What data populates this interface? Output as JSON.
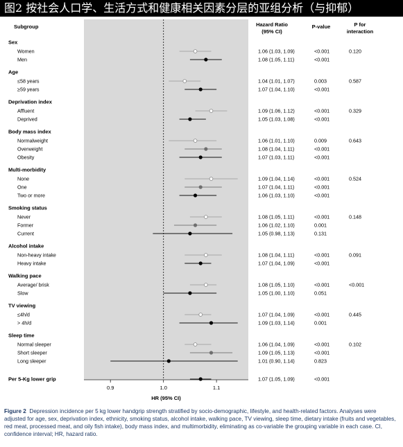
{
  "banner_title": "图2 按社会人口学、生活方式和健康相关因素分层的亚组分析（与抑郁）",
  "chart_data": {
    "type": "forest",
    "xlabel": "HR (95% CI)",
    "xlim": [
      0.85,
      1.16
    ],
    "xticks": [
      0.9,
      1.0,
      1.1
    ],
    "reference_line": 1.0,
    "columns": {
      "subgroup": "Subgroup",
      "hr_line1": "Hazard Ratio",
      "hr_line2": "(95% CI)",
      "pvalue": "P-value",
      "pint_line1": "P for",
      "pint_line2": "interaction"
    },
    "groups": [
      {
        "name": "Sex",
        "p_interaction": "0.120",
        "rows": [
          {
            "label": "Women",
            "hr": 1.06,
            "lo": 1.03,
            "hi": 1.09,
            "hr_text": "1.06 (1.03, 1.09)",
            "p": "<0.001",
            "marker": "open"
          },
          {
            "label": "Men",
            "hr": 1.08,
            "lo": 1.05,
            "hi": 1.11,
            "hr_text": "1.08 (1.05, 1.11)",
            "p": "<0.001",
            "marker": "filled"
          }
        ]
      },
      {
        "name": "Age",
        "p_interaction": "0.587",
        "rows": [
          {
            "label": "≤58 years",
            "hr": 1.04,
            "lo": 1.01,
            "hi": 1.07,
            "hr_text": "1.04 (1.01, 1.07)",
            "p": "0.003",
            "marker": "open"
          },
          {
            "label": "≥59 years",
            "hr": 1.07,
            "lo": 1.04,
            "hi": 1.1,
            "hr_text": "1.07 (1.04, 1.10)",
            "p": "<0.001",
            "marker": "filled"
          }
        ]
      },
      {
        "name": "Deprivation index",
        "p_interaction": "0.329",
        "rows": [
          {
            "label": "Affluent",
            "hr": 1.09,
            "lo": 1.06,
            "hi": 1.12,
            "hr_text": "1.09 (1.06, 1.12)",
            "p": "<0.001",
            "marker": "open"
          },
          {
            "label": "Deprived",
            "hr": 1.05,
            "lo": 1.03,
            "hi": 1.08,
            "hr_text": "1.05 (1.03, 1.08)",
            "p": "<0.001",
            "marker": "filled"
          }
        ]
      },
      {
        "name": "Body mass index",
        "p_interaction": "0.643",
        "rows": [
          {
            "label": "Normalweight",
            "hr": 1.06,
            "lo": 1.01,
            "hi": 1.1,
            "hr_text": "1.06 (1.01, 1.10)",
            "p": "0.009",
            "marker": "open"
          },
          {
            "label": "Overweight",
            "hr": 1.08,
            "lo": 1.04,
            "hi": 1.11,
            "hr_text": "1.08 (1.04, 1.11)",
            "p": "<0.001",
            "marker": "grey"
          },
          {
            "label": "Obesity",
            "hr": 1.07,
            "lo": 1.03,
            "hi": 1.11,
            "hr_text": "1.07 (1.03, 1.11)",
            "p": "<0.001",
            "marker": "filled"
          }
        ]
      },
      {
        "name": "Multi-morbidity",
        "p_interaction": "0.524",
        "rows": [
          {
            "label": "None",
            "hr": 1.09,
            "lo": 1.04,
            "hi": 1.14,
            "hr_text": "1.09 (1.04, 1.14)",
            "p": "<0.001",
            "marker": "open"
          },
          {
            "label": "One",
            "hr": 1.07,
            "lo": 1.04,
            "hi": 1.11,
            "hr_text": "1.07 (1.04, 1.11)",
            "p": "<0.001",
            "marker": "grey"
          },
          {
            "label": "Two or more",
            "hr": 1.06,
            "lo": 1.03,
            "hi": 1.1,
            "hr_text": "1.06 (1.03, 1.10)",
            "p": "<0.001",
            "marker": "filled"
          }
        ]
      },
      {
        "name": "Smoking status",
        "p_interaction": "0.148",
        "rows": [
          {
            "label": "Never",
            "hr": 1.08,
            "lo": 1.05,
            "hi": 1.11,
            "hr_text": "1.08 (1.05, 1.11)",
            "p": "<0.001",
            "marker": "open"
          },
          {
            "label": "Former",
            "hr": 1.06,
            "lo": 1.02,
            "hi": 1.1,
            "hr_text": "1.06 (1.02, 1.10)",
            "p": "0.001",
            "marker": "grey"
          },
          {
            "label": "Current",
            "hr": 1.05,
            "lo": 0.98,
            "hi": 1.13,
            "hr_text": "1.05 (0.98, 1.13)",
            "p": "0.131",
            "marker": "filled"
          }
        ]
      },
      {
        "name": "Alcohol intake",
        "p_interaction": "0.091",
        "rows": [
          {
            "label": "Non-heavy intake",
            "hr": 1.08,
            "lo": 1.04,
            "hi": 1.11,
            "hr_text": "1.08 (1.04, 1.11)",
            "p": "<0.001",
            "marker": "open"
          },
          {
            "label": "Heavy intake",
            "hr": 1.07,
            "lo": 1.04,
            "hi": 1.09,
            "hr_text": "1.07 (1.04, 1.09)",
            "p": "<0.001",
            "marker": "filled"
          }
        ]
      },
      {
        "name": "Walking pace",
        "p_interaction": "<0.001",
        "rows": [
          {
            "label": "Average/ brisk",
            "hr": 1.08,
            "lo": 1.05,
            "hi": 1.1,
            "hr_text": "1.08 (1.05, 1.10)",
            "p": "<0.001",
            "marker": "open"
          },
          {
            "label": "Slow",
            "hr": 1.05,
            "lo": 1.0,
            "hi": 1.1,
            "hr_text": "1.05 (1.00, 1.10)",
            "p": "0.051",
            "marker": "filled"
          }
        ]
      },
      {
        "name": "TV viewing",
        "p_interaction": "0.445",
        "rows": [
          {
            "label": "≤4h/d",
            "hr": 1.07,
            "lo": 1.04,
            "hi": 1.09,
            "hr_text": "1.07 (1.04, 1.09)",
            "p": "<0.001",
            "marker": "open"
          },
          {
            "label": "> 4h/d",
            "hr": 1.09,
            "lo": 1.03,
            "hi": 1.14,
            "hr_text": "1.09 (1.03, 1.14)",
            "p": "0.001",
            "marker": "filled"
          }
        ]
      },
      {
        "name": "Sleep time",
        "p_interaction": "0.102",
        "rows": [
          {
            "label": "Normal sleeper",
            "hr": 1.06,
            "lo": 1.04,
            "hi": 1.09,
            "hr_text": "1.06 (1.04, 1.09)",
            "p": "<0.001",
            "marker": "open"
          },
          {
            "label": "Short sleeper",
            "hr": 1.09,
            "lo": 1.05,
            "hi": 1.13,
            "hr_text": "1.09 (1.05, 1.13)",
            "p": "<0.001",
            "marker": "grey"
          },
          {
            "label": "Long sleeper",
            "hr": 1.01,
            "lo": 0.9,
            "hi": 1.14,
            "hr_text": "1.01 (0.90, 1.14)",
            "p": "0.823",
            "marker": "filled"
          }
        ]
      }
    ],
    "overall": {
      "label": "Per 5-Kg lower grip",
      "hr": 1.07,
      "lo": 1.05,
      "hi": 1.09,
      "hr_text": "1.07 (1.05, 1.09)",
      "p": "<0.001",
      "marker": "filled"
    }
  },
  "caption": {
    "label": "Figure 2",
    "text": "Depression incidence per 5 kg lower handgrip strength stratified by socio-demographic, lifestyle, and health-related factors. Analyses were adjusted for age, sex, deprivation index, ethnicity, smoking status, alcohol intake, walking pace, TV viewing, sleep time, dietary intake (fruits and vegetables, red meat, processed meat, and oily fish intake), body mass index, and multimorbidity, eliminating as co-variable the grouping variable in each case. CI, confidence interval; HR, hazard ratio."
  }
}
